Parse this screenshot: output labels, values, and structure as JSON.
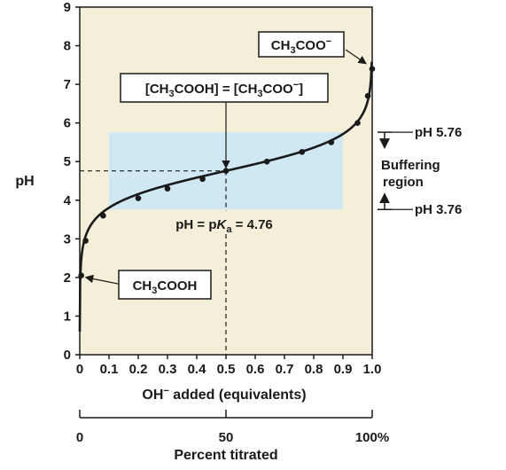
{
  "chart_data": {
    "type": "line",
    "title": "",
    "xlabel_main": "OH",
    "xlabel_sup": "−",
    "xlabel_rest": " added (equivalents)",
    "ylabel": "pH",
    "xlim": [
      0,
      1.0
    ],
    "ylim": [
      0,
      9
    ],
    "x_ticks": [
      "0",
      "0.1",
      "0.2",
      "0.3",
      "0.4",
      "0.5",
      "0.6",
      "0.7",
      "0.8",
      "0.9",
      "1.0"
    ],
    "y_ticks": [
      "0",
      "1",
      "2",
      "3",
      "4",
      "5",
      "6",
      "7",
      "8",
      "9"
    ],
    "series": [
      {
        "x": [
          0.005,
          0.02,
          0.08,
          0.2,
          0.3,
          0.42,
          0.5,
          0.64,
          0.76,
          0.86,
          0.95,
          0.985,
          1.0
        ],
        "y": [
          2.05,
          2.95,
          3.6,
          4.05,
          4.3,
          4.55,
          4.76,
          5.0,
          5.25,
          5.5,
          6.0,
          6.7,
          7.4
        ]
      }
    ],
    "buffer_region": {
      "x": [
        0.1,
        0.9
      ],
      "y": [
        3.76,
        5.76
      ]
    },
    "pka_point": {
      "x": 0.5,
      "y": 4.76
    },
    "colors": {
      "panel": "#f4efd9",
      "buffer": "#cfe8f3",
      "ink": "#1a1a1a"
    }
  },
  "annotations": {
    "conj_base": {
      "pre": "CH",
      "sub": "3",
      "post": "COO",
      "sup": "−"
    },
    "acid": {
      "pre": "CH",
      "sub": "3",
      "post": "COOH"
    },
    "equal": {
      "t1": "[CH",
      "s1": "3",
      "t2": "COOH] = [CH",
      "s2": "3",
      "t3": "COO",
      "sup": "−",
      "t4": "]"
    },
    "pka": {
      "t1": "pH = p",
      "k": "K",
      "a": "a",
      "t2": " = 4.76"
    },
    "ph_high": "pH 5.76",
    "ph_low": "pH 3.76",
    "buffer_line1": "Buffering",
    "buffer_line2": "region"
  },
  "percent_axis": {
    "label": "Percent titrated",
    "ticks": [
      "0",
      "50",
      "100%"
    ]
  }
}
